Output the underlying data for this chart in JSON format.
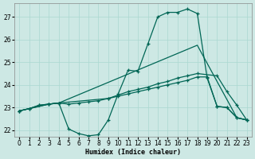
{
  "background_color": "#cde8e4",
  "grid_color": "#aad8d0",
  "line_color": "#006655",
  "xlabel": "Humidex (Indice chaleur)",
  "ylim": [
    21.7,
    27.6
  ],
  "xlim": [
    -0.5,
    23.5
  ],
  "yticks": [
    22,
    23,
    24,
    25,
    26,
    27
  ],
  "xticks": [
    0,
    1,
    2,
    3,
    4,
    5,
    6,
    7,
    8,
    9,
    10,
    11,
    12,
    13,
    14,
    15,
    16,
    17,
    18,
    19,
    20,
    21,
    22,
    23
  ],
  "curve1_x": [
    0,
    1,
    2,
    3,
    4,
    5,
    6,
    7,
    8,
    9,
    10,
    11,
    12,
    13,
    14,
    15,
    16,
    17,
    18,
    19,
    20,
    21,
    22,
    23
  ],
  "curve1_y": [
    22.85,
    22.95,
    23.1,
    23.15,
    23.2,
    22.05,
    21.85,
    21.75,
    21.8,
    22.45,
    23.6,
    24.65,
    24.6,
    25.8,
    27.0,
    27.2,
    27.2,
    27.35,
    27.15,
    24.3,
    23.05,
    23.0,
    22.55,
    22.45
  ],
  "curve2_x": [
    0,
    3,
    4,
    9,
    10,
    11,
    12,
    13,
    14,
    15,
    16,
    17,
    18,
    20,
    21,
    22,
    23
  ],
  "curve2_y": [
    22.85,
    23.15,
    23.2,
    23.4,
    23.55,
    23.7,
    23.8,
    23.9,
    24.05,
    24.15,
    24.3,
    24.4,
    24.5,
    24.4,
    23.7,
    23.1,
    22.45
  ],
  "curve3_x": [
    0,
    1,
    2,
    3,
    4,
    5,
    6,
    7,
    8,
    9,
    10,
    11,
    12,
    13,
    14,
    15,
    16,
    17,
    18,
    19,
    20,
    21,
    22,
    23
  ],
  "curve3_y": [
    22.85,
    22.95,
    23.1,
    23.15,
    23.2,
    23.15,
    23.2,
    23.25,
    23.3,
    23.4,
    23.5,
    23.6,
    23.7,
    23.8,
    23.9,
    24.0,
    24.1,
    24.2,
    24.35,
    24.35,
    23.05,
    23.0,
    22.55,
    22.45
  ],
  "curve4_x": [
    0,
    3,
    4,
    18,
    22,
    23
  ],
  "curve4_y": [
    22.85,
    23.15,
    23.2,
    25.75,
    22.55,
    22.45
  ]
}
